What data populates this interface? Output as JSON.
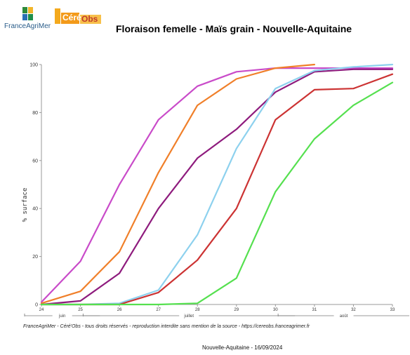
{
  "logos": {
    "franceagrimer": "FranceAgriMer",
    "cereobs_c": "Céré",
    "cereobs_o": "Obs"
  },
  "title": "Floraison femelle - Maïs grain - Nouvelle-Aquitaine",
  "footer": "FranceAgriMer - Céré'Obs - tous droits réservés - reproduction interdite sans mention de la source - https://cereobs.franceagrimer.fr",
  "caption": "Nouvelle-Aquitaine - 16/09/2024",
  "chart_data": {
    "type": "line",
    "title": "Floraison femelle - Maïs grain - Nouvelle-Aquitaine",
    "ylabel": "% surface",
    "xlabel": "",
    "ylim": [
      0,
      100
    ],
    "yticks": [
      0,
      20,
      40,
      60,
      80,
      100
    ],
    "x": [
      24,
      25,
      26,
      27,
      28,
      29,
      30,
      31,
      32,
      33
    ],
    "x_tick_labels": [
      "24",
      "25",
      "26",
      "27",
      "28",
      "29",
      "30",
      "31",
      "32",
      "33"
    ],
    "months": [
      {
        "label": "juin",
        "from": 24,
        "to": 25.5
      },
      {
        "label": "juillet",
        "from": 25.5,
        "to": 30.5
      },
      {
        "label": "août",
        "from": 30.5,
        "to": 33.5
      }
    ],
    "grid": false,
    "legend": "none",
    "series": [
      {
        "color": "#c94bc9",
        "values": [
          1,
          18,
          50,
          77,
          91,
          97,
          98.5,
          98.5,
          98.5,
          98.5
        ]
      },
      {
        "color": "#f07f29",
        "values": [
          0.5,
          5.5,
          22,
          55,
          83,
          94,
          98.5,
          100,
          null,
          null
        ]
      },
      {
        "color": "#8e1b7d",
        "values": [
          0,
          1.5,
          13,
          40,
          61,
          73,
          88.5,
          97,
          98,
          98
        ]
      },
      {
        "color": "#8dd1ee",
        "values": [
          0,
          0,
          0.5,
          6,
          29,
          65,
          90,
          97.5,
          99,
          100
        ]
      },
      {
        "color": "#cc3333",
        "values": [
          0,
          0,
          0,
          5,
          18.5,
          40,
          77,
          89.5,
          90,
          96
        ]
      },
      {
        "color": "#55e04f",
        "values": [
          0,
          0,
          0,
          0,
          0.5,
          11,
          47,
          69,
          83,
          92.5
        ]
      }
    ]
  }
}
